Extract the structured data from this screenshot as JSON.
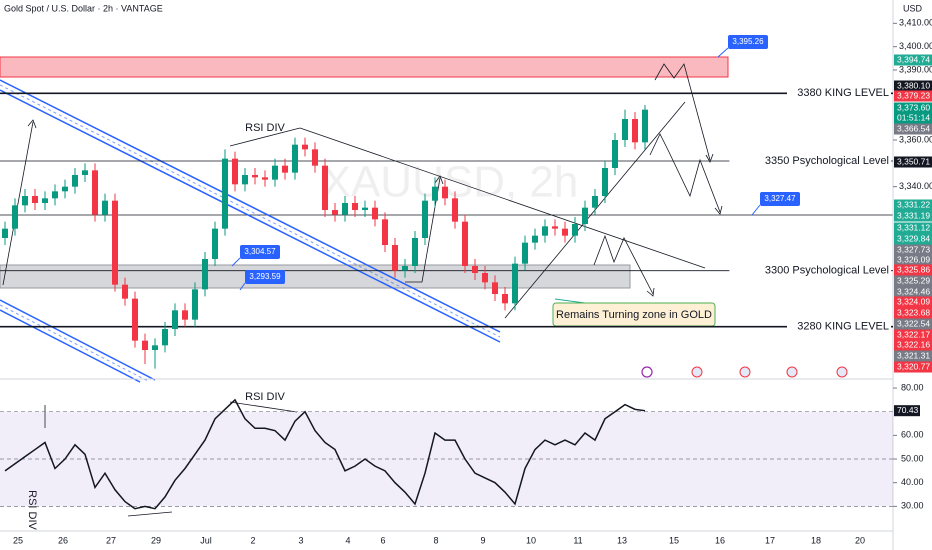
{
  "chart_data": {
    "type": "candlestick",
    "title": "Gold Spot / U.S. Dollar · 2h · VANTAGE",
    "currency": "USD",
    "watermark": "XAUUSD, 2h",
    "colors": {
      "up": "#089981",
      "down": "#f23645"
    },
    "open": [
      3318,
      3322,
      3332,
      3336,
      3333,
      3335,
      3338,
      3340,
      3345,
      3347,
      3328,
      3334,
      3298,
      3292,
      3274,
      3270,
      3272,
      3279,
      3287,
      3283,
      3296,
      3309,
      3322,
      3352,
      3341,
      3345,
      3344,
      3343,
      3349,
      3346,
      3358,
      3356,
      3349,
      3330,
      3328,
      3333,
      3330,
      3331,
      3326,
      3315,
      3304,
      3306,
      3318,
      3334,
      3340,
      3335,
      3325,
      3306,
      3303,
      3299,
      3294,
      3290,
      3307,
      3316,
      3319,
      3323,
      3322,
      3319,
      3324,
      3331,
      3336,
      3348,
      3360,
      3369,
      3359
    ],
    "high": [
      3325,
      3335,
      3339,
      3339,
      3338,
      3341,
      3343,
      3348,
      3350,
      3350,
      3337,
      3337,
      3301,
      3295,
      3277,
      3275,
      3282,
      3290,
      3290,
      3299,
      3312,
      3325,
      3356,
      3355,
      3348,
      3348,
      3347,
      3352,
      3352,
      3361,
      3361,
      3359,
      3352,
      3333,
      3336,
      3336,
      3334,
      3334,
      3329,
      3318,
      3309,
      3321,
      3337,
      3344,
      3343,
      3338,
      3328,
      3309,
      3306,
      3302,
      3297,
      3310,
      3319,
      3322,
      3326,
      3326,
      3325,
      3327,
      3334,
      3339,
      3351,
      3363,
      3373,
      3372,
      3375
    ],
    "low": [
      3315,
      3319,
      3329,
      3330,
      3330,
      3332,
      3335,
      3337,
      3342,
      3325,
      3325,
      3295,
      3289,
      3271,
      3264,
      3262,
      3269,
      3276,
      3280,
      3280,
      3293,
      3306,
      3319,
      3338,
      3338,
      3341,
      3340,
      3340,
      3343,
      3343,
      3353,
      3346,
      3327,
      3325,
      3325,
      3327,
      3327,
      3323,
      3312,
      3301,
      3301,
      3303,
      3315,
      3331,
      3332,
      3322,
      3303,
      3300,
      3296,
      3291,
      3287,
      3287,
      3304,
      3313,
      3316,
      3319,
      3316,
      3316,
      3321,
      3328,
      3333,
      3345,
      3357,
      3356,
      3356
    ],
    "close": [
      3322,
      3332,
      3336,
      3333,
      3335,
      3338,
      3340,
      3345,
      3347,
      3328,
      3334,
      3298,
      3292,
      3274,
      3270,
      3272,
      3279,
      3287,
      3283,
      3296,
      3309,
      3322,
      3352,
      3341,
      3345,
      3344,
      3343,
      3349,
      3346,
      3358,
      3356,
      3349,
      3330,
      3328,
      3333,
      3330,
      3331,
      3326,
      3315,
      3304,
      3306,
      3318,
      3334,
      3340,
      3335,
      3325,
      3306,
      3303,
      3299,
      3294,
      3290,
      3307,
      3316,
      3319,
      3323,
      3322,
      3319,
      3324,
      3331,
      3336,
      3348,
      3360,
      3369,
      3359,
      3373
    ],
    "ylim": [
      3258,
      3420
    ],
    "yticks": [
      {
        "value": 3410,
        "label": "3,410.00"
      },
      {
        "value": 3400,
        "label": "3,400.00"
      },
      {
        "value": 3390,
        "label": "3,390.00"
      },
      {
        "value": 3360,
        "label": "3,360.00"
      },
      {
        "value": 3340,
        "label": "3,340.00"
      }
    ],
    "levels": [
      {
        "label": "3380 KING LEVEL",
        "value": 3380,
        "color": "#131722"
      },
      {
        "label": "3350 Psychological Level",
        "value": 3351,
        "color": "#131722"
      },
      {
        "label": "3300 Psychological Level",
        "value": 3304,
        "color": "#131722"
      },
      {
        "label": "3280 KING LEVEL",
        "value": 3280,
        "color": "#131722"
      }
    ],
    "callouts": [
      {
        "value": 3395.26,
        "label": "3,395.26"
      },
      {
        "value": 3327.47,
        "label": "3,327.47"
      },
      {
        "value": 3304.57,
        "label": "3,304.57"
      },
      {
        "value": 3293.59,
        "label": "3,293.59"
      }
    ],
    "annotations": [
      "RSI DIV",
      "Remains Turning zone in GOLD",
      "RSI DIV",
      "RSI DIV"
    ],
    "price_badges": [
      {
        "value": 3394.74,
        "label": "3,394.74",
        "color": "#22ab94"
      },
      {
        "value": 3380.1,
        "label": "3,380.10",
        "color": "#131722"
      },
      {
        "value": 3379.23,
        "label": "3,379.23",
        "color": "#f23645"
      },
      {
        "value": 3373.6,
        "label": "3,373.60",
        "color": "#089981"
      },
      {
        "label": "01:51:14",
        "color": "#089981"
      },
      {
        "value": 3366.54,
        "label": "3,366.54",
        "color": "#787b86"
      },
      {
        "value": 3350.71,
        "label": "3,350.71",
        "color": "#131722"
      },
      {
        "value": 3331.22,
        "label": "3,331.22",
        "color": "#22ab94"
      },
      {
        "value": 3331.19,
        "label": "3,331.19",
        "color": "#22ab94"
      },
      {
        "value": 3331.12,
        "label": "3,331.12",
        "color": "#22ab94"
      },
      {
        "value": 3329.84,
        "label": "3,329.84",
        "color": "#22ab94"
      },
      {
        "value": 3327.73,
        "label": "3,327.73",
        "color": "#787b86"
      },
      {
        "value": 3326.09,
        "label": "3,326.09",
        "color": "#787b86"
      },
      {
        "value": 3325.86,
        "label": "3,325.86",
        "color": "#f23645"
      },
      {
        "value": 3325.29,
        "label": "3,325.29",
        "color": "#787b86"
      },
      {
        "value": 3324.46,
        "label": "3,324.46",
        "color": "#787b86"
      },
      {
        "value": 3324.09,
        "label": "3,324.09",
        "color": "#f23645"
      },
      {
        "value": 3323.68,
        "label": "3,323.68",
        "color": "#f23645"
      },
      {
        "value": 3322.54,
        "label": "3,322.54",
        "color": "#787b86"
      },
      {
        "value": 3322.17,
        "label": "3,322.17",
        "color": "#f23645"
      },
      {
        "value": 3322.16,
        "label": "3,322.16",
        "color": "#f23645"
      },
      {
        "value": 3321.31,
        "label": "3,321.31",
        "color": "#787b86"
      },
      {
        "value": 3320.77,
        "label": "3,320.77",
        "color": "#f23645"
      }
    ],
    "x_labels": [
      "25",
      "26",
      "27",
      "29",
      "Jul",
      "2",
      "3",
      "4",
      "6",
      "8",
      "9",
      "10",
      "11",
      "13",
      "15",
      "16",
      "17",
      "18",
      "20"
    ],
    "rsi": {
      "values": [
        45,
        48,
        51,
        54,
        57,
        46,
        50,
        56,
        52,
        38,
        44,
        37,
        32,
        29,
        30,
        29,
        34,
        41,
        46,
        52,
        58,
        67,
        71,
        75,
        67,
        63,
        63,
        62,
        58,
        66,
        70,
        62,
        57,
        54,
        45,
        47,
        50,
        47,
        45,
        40,
        36,
        31,
        44,
        61,
        58,
        58,
        50,
        44,
        42,
        40,
        36,
        31,
        46,
        54,
        58,
        56,
        58,
        56,
        61,
        58,
        67,
        70,
        73,
        71,
        70.43
      ],
      "color": "#131722",
      "current_value": 70.43,
      "ylim": [
        20,
        83.4
      ],
      "yticks": [
        {
          "value": 80,
          "label": "80.00"
        },
        {
          "value": 60,
          "label": "60.00"
        },
        {
          "value": 50,
          "label": "50.00"
        },
        {
          "value": 40,
          "label": "40.00"
        },
        {
          "value": 30,
          "label": "30.00"
        }
      ],
      "band": [
        30,
        70
      ]
    }
  }
}
